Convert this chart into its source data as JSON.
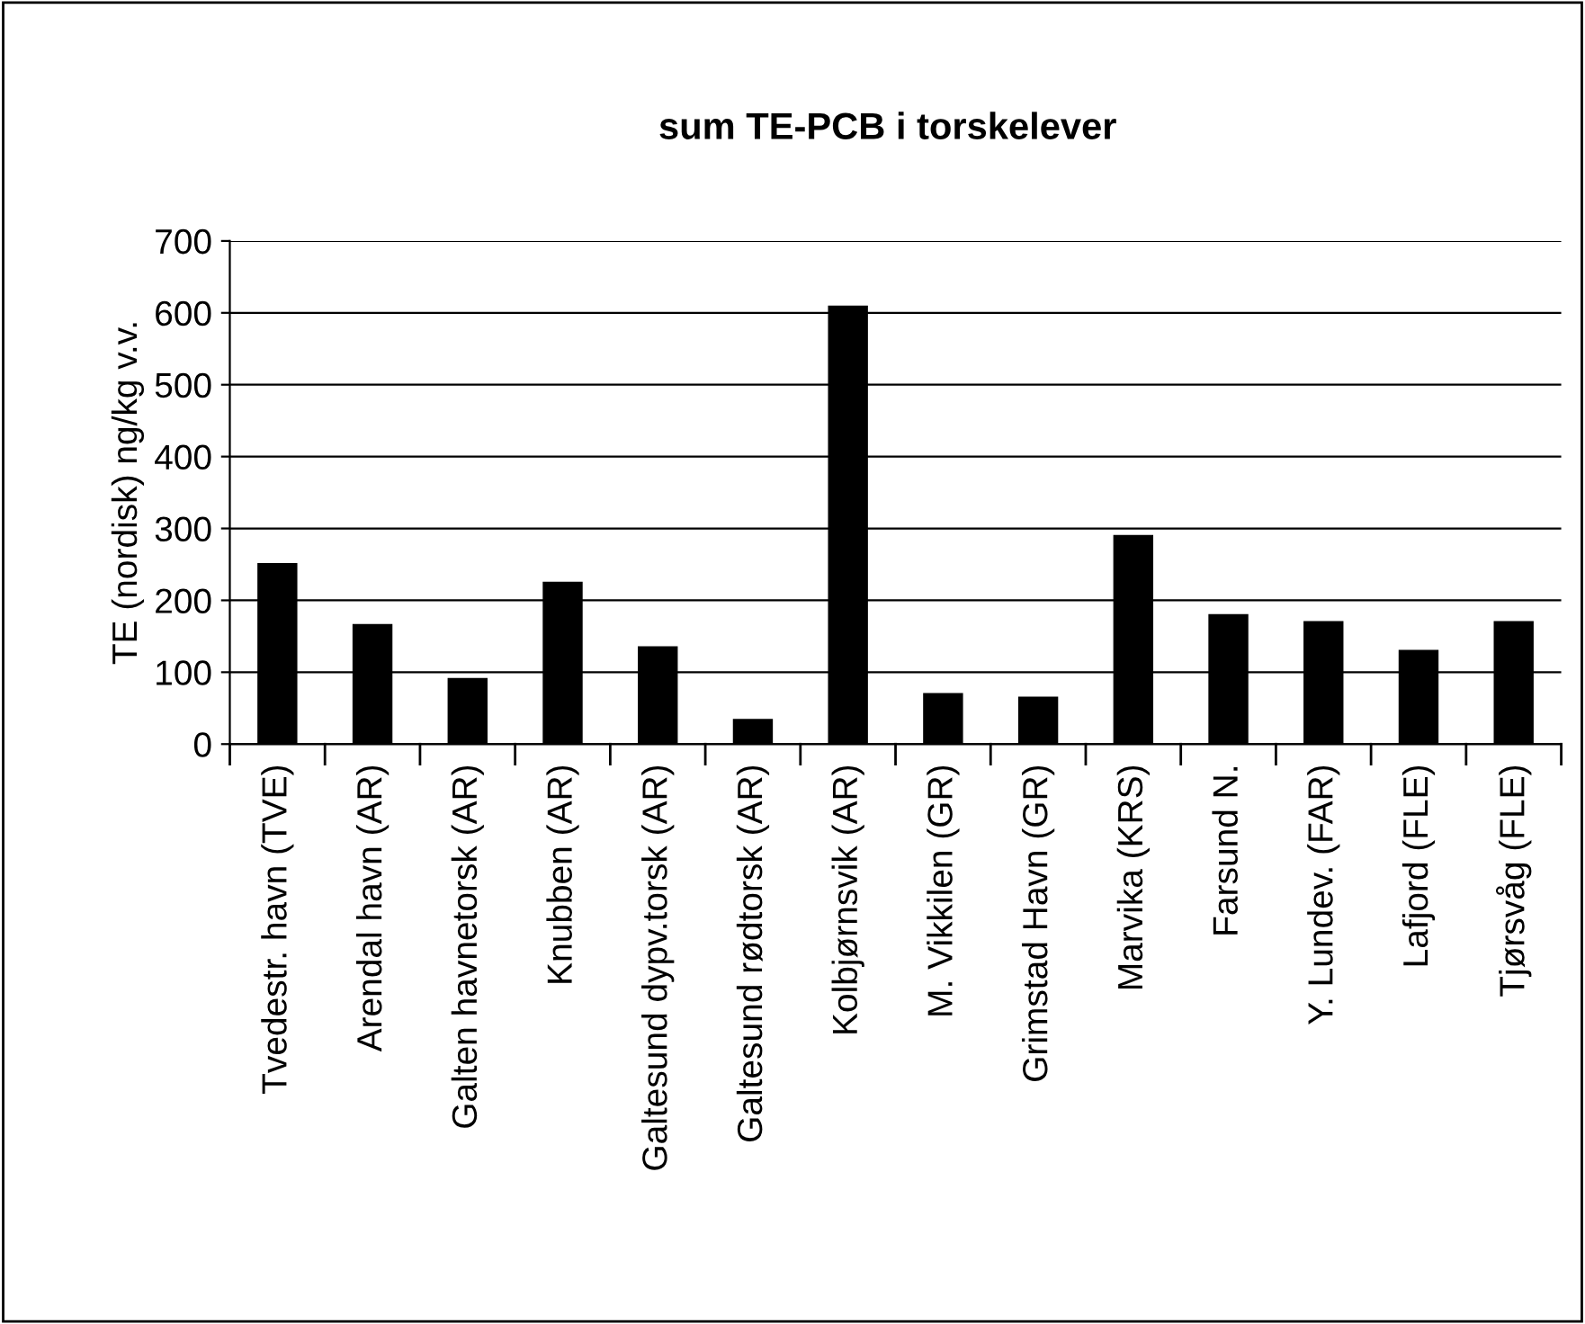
{
  "chart_data": {
    "type": "bar",
    "title": "sum TE-PCB i torskelever",
    "ylabel": "TE (nordisk) ng/kg v.v.",
    "categories": [
      "Tvedestr. havn (TVE)",
      "Arendal havn (AR)",
      "Galten havnetorsk (AR)",
      "Knubben (AR)",
      "Galtesund dypv.torsk (AR)",
      "Galtesund rødtorsk (AR)",
      "Kolbjørnsvik (AR)",
      "M. Vikkilen (GR)",
      "Grimstad Havn (GR)",
      "Marvika (KRS)",
      "Farsund N.",
      "Y. Lundev. (FAR)",
      "Lafjord (FLE)",
      "Tjørsvåg (FLE)"
    ],
    "values": [
      252,
      167,
      92,
      226,
      136,
      35,
      610,
      71,
      66,
      291,
      181,
      171,
      131,
      171
    ],
    "color": "#000000",
    "ylim": [
      0,
      700
    ],
    "yticks": [
      0,
      100,
      200,
      300,
      400,
      500,
      600,
      700
    ],
    "grid": "y"
  }
}
